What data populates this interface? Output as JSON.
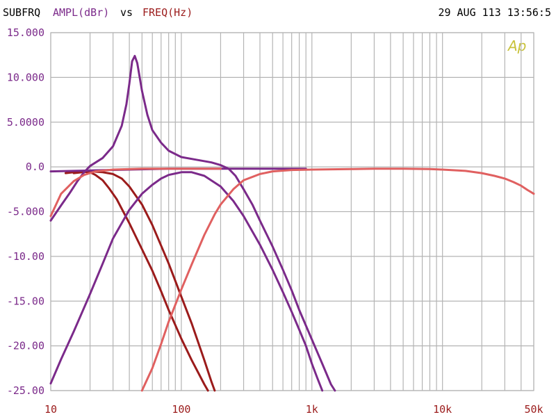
{
  "header": {
    "prefix": "SUBFRQ",
    "ylabel": "AMPL(dBr)",
    "vs": "vs",
    "xlabel": "FREQ(Hz)",
    "timestamp": "29 AUG 113 13:56:5",
    "logo": "Ap"
  },
  "colors": {
    "prefix": "#000000",
    "ylabel": "#7b2a8a",
    "vs": "#000000",
    "xlabel": "#9b1b1b",
    "grid": "#b4b4b4",
    "axis_text_y": "#7b2a8a",
    "logo": "#c8c23a"
  },
  "chart_data": {
    "type": "line",
    "x_scale": "log",
    "xlim": [
      10,
      50000
    ],
    "ylim": [
      -25,
      15
    ],
    "grid": true,
    "y_ticks": [
      "15.000",
      "10.000",
      "5.0000",
      "0.0",
      "-5.000",
      "-10.00",
      "-15.00",
      "-20.00",
      "-25.00"
    ],
    "y_tick_values": [
      15,
      10,
      5,
      0,
      -5,
      -10,
      -15,
      -20,
      -25
    ],
    "x_ticks": [
      "10",
      "100",
      "1k",
      "10k",
      "50k"
    ],
    "x_tick_values": [
      10,
      100,
      1000,
      10000,
      50000
    ],
    "series": [
      {
        "color": "#9b1b1b",
        "width": 3,
        "points": [
          [
            13,
            -0.7
          ],
          [
            15,
            -0.6
          ],
          [
            18,
            -0.55
          ],
          [
            20,
            -0.6
          ],
          [
            22,
            -0.9
          ],
          [
            25,
            -1.5
          ],
          [
            28,
            -2.4
          ],
          [
            32,
            -3.6
          ],
          [
            40,
            -6.3
          ],
          [
            50,
            -9.2
          ],
          [
            60,
            -11.6
          ],
          [
            70,
            -13.9
          ],
          [
            80,
            -16.0
          ],
          [
            100,
            -19.2
          ],
          [
            120,
            -21.6
          ],
          [
            150,
            -24.3
          ],
          [
            160,
            -25.0
          ]
        ]
      },
      {
        "color": "#9b1b1b",
        "width": 3,
        "points": [
          [
            15,
            -0.7
          ],
          [
            20,
            -0.5
          ],
          [
            25,
            -0.6
          ],
          [
            30,
            -0.8
          ],
          [
            35,
            -1.3
          ],
          [
            40,
            -2.2
          ],
          [
            50,
            -4.2
          ],
          [
            60,
            -6.5
          ],
          [
            70,
            -8.8
          ],
          [
            80,
            -10.8
          ],
          [
            100,
            -14.5
          ],
          [
            120,
            -17.5
          ],
          [
            150,
            -21.6
          ],
          [
            170,
            -24.0
          ],
          [
            180,
            -25.0
          ]
        ]
      },
      {
        "color": "#7b2a8a",
        "width": 3,
        "points": [
          [
            10,
            -6.0
          ],
          [
            12,
            -4.3
          ],
          [
            14,
            -2.9
          ],
          [
            16,
            -1.6
          ],
          [
            18,
            -0.6
          ],
          [
            20,
            0.1
          ],
          [
            25,
            1.0
          ],
          [
            30,
            2.3
          ],
          [
            35,
            4.6
          ],
          [
            38,
            7.0
          ],
          [
            40,
            9.3
          ],
          [
            42,
            11.8
          ],
          [
            44,
            12.4
          ],
          [
            46,
            11.6
          ],
          [
            50,
            8.5
          ],
          [
            55,
            5.8
          ],
          [
            60,
            4.1
          ],
          [
            70,
            2.7
          ],
          [
            80,
            1.8
          ],
          [
            100,
            1.1
          ],
          [
            130,
            0.8
          ],
          [
            170,
            0.5
          ],
          [
            200,
            0.2
          ],
          [
            230,
            -0.2
          ],
          [
            260,
            -1.0
          ],
          [
            300,
            -2.5
          ],
          [
            350,
            -4.2
          ],
          [
            400,
            -6.0
          ],
          [
            500,
            -8.9
          ],
          [
            600,
            -11.5
          ],
          [
            700,
            -13.8
          ],
          [
            800,
            -16.0
          ],
          [
            1000,
            -19.3
          ],
          [
            1200,
            -22.0
          ],
          [
            1400,
            -24.3
          ],
          [
            1500,
            -25.0
          ]
        ]
      },
      {
        "color": "#7b2a8a",
        "width": 3,
        "points": [
          [
            10,
            -24.2
          ],
          [
            12,
            -21.5
          ],
          [
            15,
            -18.4
          ],
          [
            20,
            -14.2
          ],
          [
            25,
            -10.8
          ],
          [
            30,
            -8.0
          ],
          [
            40,
            -4.8
          ],
          [
            50,
            -3.0
          ],
          [
            60,
            -2.0
          ],
          [
            70,
            -1.3
          ],
          [
            80,
            -0.9
          ],
          [
            100,
            -0.6
          ],
          [
            120,
            -0.6
          ],
          [
            150,
            -1.0
          ],
          [
            200,
            -2.2
          ],
          [
            250,
            -3.8
          ],
          [
            300,
            -5.5
          ],
          [
            400,
            -8.7
          ],
          [
            500,
            -11.5
          ],
          [
            600,
            -14.0
          ],
          [
            700,
            -16.2
          ],
          [
            800,
            -18.2
          ],
          [
            900,
            -20.0
          ],
          [
            1000,
            -22.0
          ],
          [
            1100,
            -23.6
          ],
          [
            1200,
            -25.0
          ]
        ]
      },
      {
        "color": "#7b2a8a",
        "width": 3,
        "points": [
          [
            10,
            -0.5
          ],
          [
            20,
            -0.4
          ],
          [
            40,
            -0.3
          ],
          [
            80,
            -0.2
          ],
          [
            150,
            -0.2
          ],
          [
            300,
            -0.2
          ],
          [
            500,
            -0.2
          ],
          [
            900,
            -0.2
          ]
        ]
      },
      {
        "color": "#e06060",
        "width": 3,
        "points": [
          [
            50,
            -25.0
          ],
          [
            60,
            -22.5
          ],
          [
            70,
            -19.8
          ],
          [
            80,
            -17.3
          ],
          [
            100,
            -13.7
          ],
          [
            120,
            -10.9
          ],
          [
            150,
            -7.6
          ],
          [
            180,
            -5.3
          ],
          [
            200,
            -4.2
          ],
          [
            250,
            -2.5
          ],
          [
            300,
            -1.5
          ],
          [
            400,
            -0.8
          ],
          [
            500,
            -0.5
          ],
          [
            700,
            -0.35
          ],
          [
            1000,
            -0.3
          ],
          [
            2000,
            -0.25
          ],
          [
            3000,
            -0.2
          ],
          [
            5000,
            -0.2
          ],
          [
            8000,
            -0.25
          ],
          [
            10000,
            -0.3
          ],
          [
            15000,
            -0.45
          ],
          [
            20000,
            -0.7
          ],
          [
            25000,
            -1.0
          ],
          [
            30000,
            -1.3
          ],
          [
            35000,
            -1.7
          ],
          [
            40000,
            -2.1
          ],
          [
            45000,
            -2.6
          ],
          [
            50000,
            -3.0
          ]
        ]
      },
      {
        "color": "#e06060",
        "width": 3,
        "points": [
          [
            10,
            -5.5
          ],
          [
            12,
            -3.0
          ],
          [
            15,
            -1.6
          ],
          [
            18,
            -0.9
          ],
          [
            22,
            -0.5
          ],
          [
            30,
            -0.3
          ],
          [
            50,
            -0.2
          ],
          [
            100,
            -0.2
          ],
          [
            150,
            -0.2
          ],
          [
            200,
            -0.2
          ]
        ]
      }
    ]
  }
}
